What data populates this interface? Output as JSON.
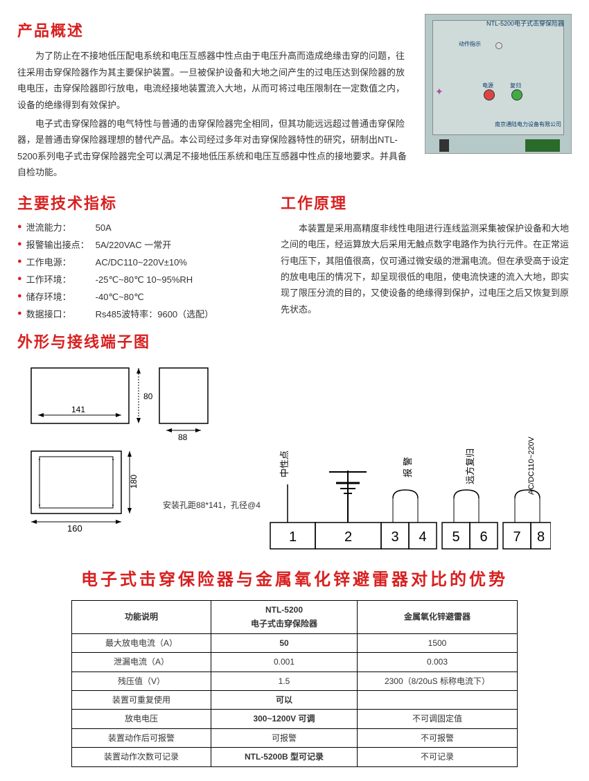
{
  "overview": {
    "heading": "产品概述",
    "p1": "为了防止在不接地低压配电系统和电压互感器中性点由于电压升高而造成绝缘击穿的问题，往往采用击穿保险器作为其主要保护装置。一旦被保护设备和大地之间产生的过电压达到保险器的放电电压，击穿保险器即行放电，电流经接地装置流入大地，从而可将过电压限制在一定数值之内，设备的绝缘得到有效保护。",
    "p2": "电子式击穿保险器的电气特性与普通的击穿保险器完全相同，但其功能远远超过普通击穿保险器，是普通击穿保险器理想的替代产品。本公司经过多年对击穿保险器特性的研究，研制出NTL-5200系列电子式击穿保险器完全可以满足不接地低压系统和电压互感器中性点的接地要求。并具备自检功能。"
  },
  "device": {
    "title": "NTL-5200电子式击穿保险器",
    "action_label": "动作指示",
    "power_label": "电源",
    "reset_label": "复归",
    "company": "南京通陆电力设备有限公司"
  },
  "specs": {
    "heading": "主要技术指标",
    "items": [
      {
        "label": "泄流能力：",
        "value": "50A"
      },
      {
        "label": "报警输出接点：",
        "value": "5A/220VAC 一常开"
      },
      {
        "label": "工作电源：",
        "value": "AC/DC110~220V±10%"
      },
      {
        "label": "工作环境：",
        "value": "-25℃~80℃  10~95%RH"
      },
      {
        "label": "储存环境：",
        "value": "-40℃~80℃"
      },
      {
        "label": "数据接口：",
        "value": "Rs485波特率：9600（选配）"
      }
    ]
  },
  "principle": {
    "heading": "工作原理",
    "text": "本装置是采用高精度非线性电阻进行连线监测采集被保护设备和大地之间的电压，经运算放大后采用无触点数字电路作为执行元件。在正常运行电压下，其阻值很高，仅可通过微安级的泄漏电流。但在承受高于设定的放电电压的情况下，却呈现很低的电阻，使电流快速的流入大地，即实现了限压分流的目的，又使设备的绝缘得到保护，过电压之后又恢复到原先状态。"
  },
  "diagram": {
    "heading": "外形与接线端子图",
    "dim_w_top": "141",
    "dim_h_top": "80",
    "dim_side": "88",
    "dim_w_bot": "160",
    "dim_h_bot": "180",
    "mount_note": "安装孔距88*141，孔径@4",
    "terminals": {
      "labels": [
        "中性点",
        "",
        "报  警",
        "远方复归",
        "AC/DC110~220V"
      ],
      "nums": [
        "1",
        "2",
        "3",
        "4",
        "5",
        "6",
        "7",
        "8"
      ]
    }
  },
  "compare": {
    "heading": "电子式击穿保险器与金属氧化锌避雷器对比的优势",
    "col_head": [
      "功能说明",
      "NTL-5200\n电子式击穿保险器",
      "金属氧化锌避雷器"
    ],
    "rows": [
      [
        "最大放电电流（A）",
        "50",
        "1500"
      ],
      [
        "泄漏电流（A）",
        "0.001",
        "0.003"
      ],
      [
        "残压值（V）",
        "1.5",
        "2300（8/20uS 标称电流下）"
      ],
      [
        "装置可重复使用",
        "可以",
        ""
      ],
      [
        "放电电压",
        "300~1200V 可调",
        "不可调固定值"
      ],
      [
        "装置动作后可报警",
        "可报警",
        "不可报警"
      ],
      [
        "装置动作次数可记录",
        "NTL-5200B 型可记录",
        "不可记录"
      ]
    ],
    "bold_cells": [
      [
        0,
        1
      ],
      [
        3,
        1
      ],
      [
        4,
        1
      ],
      [
        6,
        1
      ]
    ]
  }
}
